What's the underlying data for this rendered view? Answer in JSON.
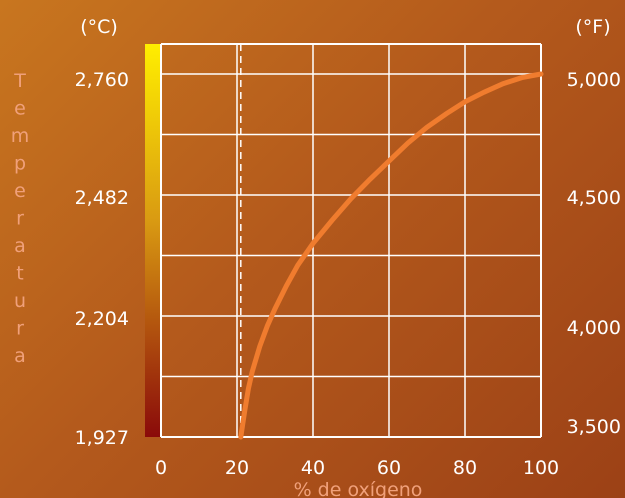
{
  "chart_data": {
    "type": "line",
    "xlabel": "% de oxígeno",
    "ylabel": "Temperatura",
    "left_unit": "(°C)",
    "right_unit": "(°F)",
    "x_ticks": [
      "0",
      "20",
      "40",
      "60",
      "80",
      "100"
    ],
    "left_ticks": [
      "1,927",
      "2,204",
      "2,482",
      "2,760"
    ],
    "right_ticks": [
      "3,500",
      "4,000",
      "4,500",
      "5,000"
    ],
    "xlim": [
      0,
      100
    ],
    "ylim_f": [
      3500,
      5000
    ],
    "reference_x": 21,
    "grid": true,
    "colors": {
      "curve": "#f07c2e",
      "grid": "#ffffff",
      "colorbar_top": "#ffee00",
      "colorbar_bottom": "#8a0a0a"
    },
    "series": [
      {
        "x": [
          21,
          22,
          23,
          24,
          26,
          28,
          30,
          33,
          36,
          40,
          45,
          50,
          55,
          60,
          65,
          70,
          75,
          80,
          85,
          90,
          95,
          100
        ],
        "y": [
          3500,
          3605,
          3700,
          3770,
          3875,
          3960,
          4030,
          4125,
          4210,
          4300,
          4395,
          4485,
          4565,
          4640,
          4715,
          4780,
          4835,
          4885,
          4925,
          4960,
          4985,
          5000
        ]
      }
    ]
  }
}
